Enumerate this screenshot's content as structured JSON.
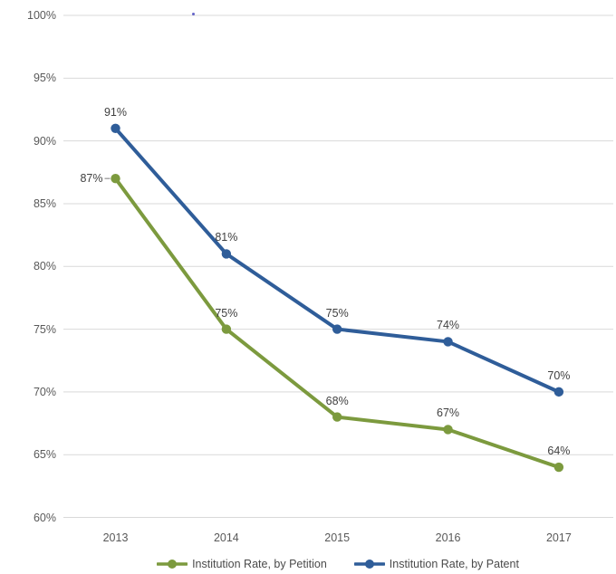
{
  "chart_data": {
    "type": "line",
    "categories": [
      "2013",
      "2014",
      "2015",
      "2016",
      "2017"
    ],
    "series": [
      {
        "name": "Institution Rate, by Petition",
        "color": "#7C9A3E",
        "values": [
          87,
          75,
          68,
          67,
          64
        ],
        "point_labels": [
          "87%",
          "75%",
          "68%",
          "67%",
          "64%"
        ],
        "label_positions": [
          "left",
          "above",
          "above",
          "above",
          "above"
        ]
      },
      {
        "name": "Institution Rate, by Patent",
        "color": "#2F5D99",
        "values": [
          91,
          81,
          75,
          74,
          70
        ],
        "point_labels": [
          "91%",
          "81%",
          "75%",
          "74%",
          "70%"
        ],
        "label_positions": [
          "above",
          "above",
          "above",
          "above",
          "above"
        ]
      }
    ],
    "title": "",
    "xlabel": "",
    "ylabel": "",
    "y_axis": {
      "min": 60,
      "max": 100,
      "step": 5,
      "tick_labels": [
        "100%",
        "95%",
        "90%",
        "85%",
        "80%",
        "75%",
        "70%",
        "65%",
        "60%"
      ]
    },
    "grid": true,
    "legend_position": "bottom"
  },
  "legend": {
    "items": [
      {
        "label": "Institution Rate, by Petition",
        "color": "#7C9A3E"
      },
      {
        "label": "Institution Rate, by Patent",
        "color": "#2F5D99"
      }
    ]
  },
  "colors": {
    "background": "#ffffff",
    "gridline": "#d9d9d9",
    "axis_text": "#595959",
    "data_label_text": "#404040",
    "leader_line": "#a6a6a6",
    "artifact_dot": "#4a4ac0"
  }
}
